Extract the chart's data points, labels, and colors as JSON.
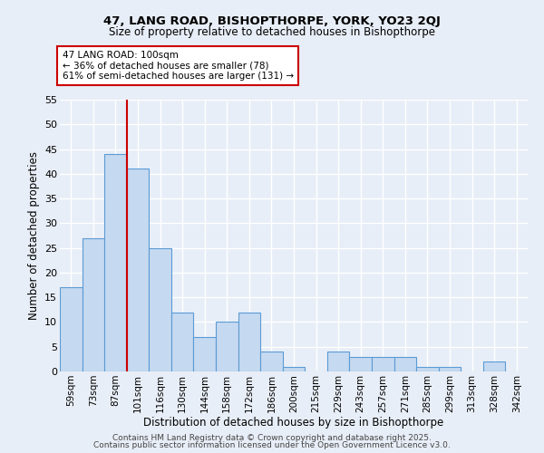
{
  "title1": "47, LANG ROAD, BISHOPTHORPE, YORK, YO23 2QJ",
  "title2": "Size of property relative to detached houses in Bishopthorpe",
  "xlabel": "Distribution of detached houses by size in Bishopthorpe",
  "ylabel": "Number of detached properties",
  "categories": [
    "59sqm",
    "73sqm",
    "87sqm",
    "101sqm",
    "116sqm",
    "130sqm",
    "144sqm",
    "158sqm",
    "172sqm",
    "186sqm",
    "200sqm",
    "215sqm",
    "229sqm",
    "243sqm",
    "257sqm",
    "271sqm",
    "285sqm",
    "299sqm",
    "313sqm",
    "328sqm",
    "342sqm"
  ],
  "values": [
    17,
    27,
    44,
    41,
    25,
    12,
    7,
    10,
    12,
    4,
    1,
    0,
    4,
    3,
    3,
    3,
    1,
    1,
    0,
    2,
    0
  ],
  "bar_color": "#c5d9f0",
  "bar_edge_color": "#5b9bd5",
  "ylim": [
    0,
    55
  ],
  "yticks": [
    0,
    5,
    10,
    15,
    20,
    25,
    30,
    35,
    40,
    45,
    50,
    55
  ],
  "vline_index": 3,
  "vline_color": "#cc0000",
  "annotation_title": "47 LANG ROAD: 100sqm",
  "annotation_line1": "← 36% of detached houses are smaller (78)",
  "annotation_line2": "61% of semi-detached houses are larger (131) →",
  "annotation_box_color": "#cc0000",
  "footer1": "Contains HM Land Registry data © Crown copyright and database right 2025.",
  "footer2": "Contains public sector information licensed under the Open Government Licence v3.0.",
  "bg_color": "#e8eef7",
  "grid_color": "#ffffff"
}
